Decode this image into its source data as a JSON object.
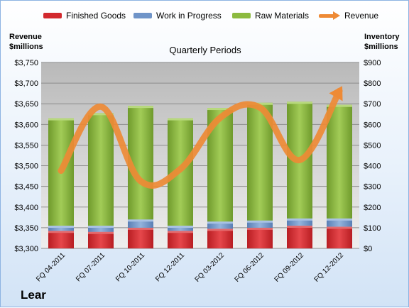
{
  "legend": {
    "finished": "Finished Goods",
    "wip": "Work in Progress",
    "raw": "Raw Materials",
    "revenue": "Revenue"
  },
  "left_axis_title": [
    "Revenue",
    "$millions"
  ],
  "right_axis_title": [
    "Inventory",
    "$millions"
  ],
  "plot_title": "Quarterly Periods",
  "company": "Lear",
  "colors": {
    "finished": "#d2292e",
    "wip": "#6f94c8",
    "raw": "#8cba3f",
    "revenue": "#ee8a35"
  },
  "chart_data": {
    "type": "bar",
    "title": "Quarterly Periods",
    "categories": [
      "FQ 04-2011",
      "FQ 07-2011",
      "FQ 10-2011",
      "FQ 12-2011",
      "FQ 03-2012",
      "FQ 06-2012",
      "FQ 09-2012",
      "FQ 12-2012"
    ],
    "series": [
      {
        "name": "Finished Goods",
        "axis": "right",
        "values": [
          85,
          80,
          100,
          85,
          95,
          100,
          110,
          105
        ]
      },
      {
        "name": "Work in Progress",
        "axis": "right",
        "values": [
          25,
          30,
          40,
          25,
          35,
          35,
          35,
          40
        ]
      },
      {
        "name": "Raw Materials",
        "axis": "right",
        "values": [
          520,
          545,
          550,
          520,
          550,
          570,
          565,
          550
        ]
      },
      {
        "name": "Revenue",
        "axis": "left",
        "type": "line",
        "values": [
          3488,
          3643,
          3463,
          3492,
          3616,
          3641,
          3514,
          3681
        ]
      }
    ],
    "ylabel_left": "Revenue $millions",
    "ylabel_right": "Inventory $millions",
    "ylim_left": [
      3300,
      3750
    ],
    "ylim_right": [
      0,
      900
    ],
    "yticks_left": [
      "$3,300",
      "$3,350",
      "$3,400",
      "$3,450",
      "$3,500",
      "$3,550",
      "$3,600",
      "$3,650",
      "$3,700",
      "$3,750"
    ],
    "yticks_right": [
      "$0",
      "$100",
      "$200",
      "$300",
      "$400",
      "$500",
      "$600",
      "$700",
      "$800",
      "$900"
    ],
    "grid": true,
    "legend_position": "top"
  }
}
